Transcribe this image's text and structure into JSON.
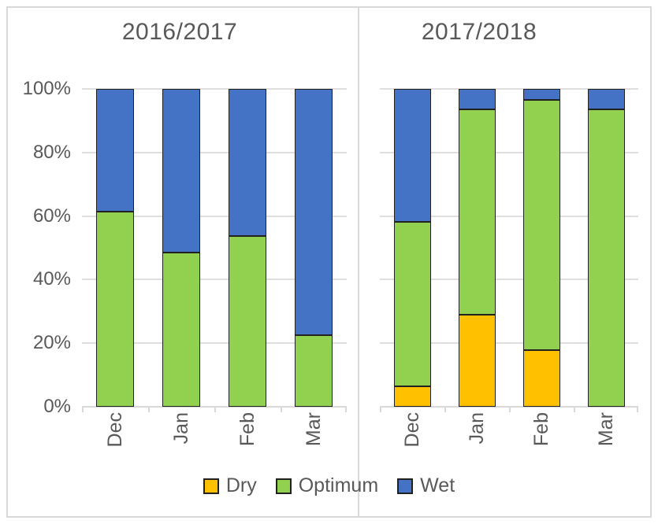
{
  "colors": {
    "dry": "#FFC000",
    "optimum": "#92D050",
    "wet": "#4472C4",
    "text": "#595959",
    "grid": "#D9D9D9",
    "bar_border": "#212121"
  },
  "legend": {
    "items": [
      {
        "key": "dry",
        "label": "Dry"
      },
      {
        "key": "optimum",
        "label": "Optimum"
      },
      {
        "key": "wet",
        "label": "Wet"
      }
    ],
    "position": "bottom-center"
  },
  "y_axis": {
    "tick_labels": [
      "100%",
      "80%",
      "60%",
      "40%",
      "20%",
      "0%"
    ],
    "shown_only_on_left_chart": true
  },
  "chart_data": [
    {
      "type": "bar",
      "subtype": "stacked-100-percent-column",
      "title": "2016/2017",
      "categories": [
        "Dec",
        "Jan",
        "Feb",
        "Mar"
      ],
      "series": [
        {
          "name": "Dry",
          "color_key": "dry",
          "values": [
            0,
            0,
            0,
            0
          ]
        },
        {
          "name": "Optimum",
          "color_key": "optimum",
          "values": [
            61.3,
            48.4,
            53.6,
            22.6
          ]
        },
        {
          "name": "Wet",
          "color_key": "wet",
          "values": [
            38.7,
            51.6,
            46.4,
            77.4
          ]
        }
      ],
      "stack_order_bottom_to_top": [
        "Dry",
        "Optimum",
        "Wet"
      ],
      "ylabel": "",
      "xlabel": "",
      "ylim": [
        0,
        100
      ],
      "grid": true,
      "x_tick_label_rotation_deg": 90
    },
    {
      "type": "bar",
      "subtype": "stacked-100-percent-column",
      "title": "2017/2018",
      "categories": [
        "Dec",
        "Jan",
        "Feb",
        "Mar"
      ],
      "series": [
        {
          "name": "Dry",
          "color_key": "dry",
          "values": [
            6.5,
            29.0,
            17.9,
            0
          ]
        },
        {
          "name": "Optimum",
          "color_key": "optimum",
          "values": [
            51.6,
            64.5,
            78.6,
            93.5
          ]
        },
        {
          "name": "Wet",
          "color_key": "wet",
          "values": [
            41.9,
            6.5,
            3.5,
            6.5
          ]
        }
      ],
      "stack_order_bottom_to_top": [
        "Dry",
        "Optimum",
        "Wet"
      ],
      "ylabel": "",
      "xlabel": "",
      "ylim": [
        0,
        100
      ],
      "grid": true,
      "x_tick_label_rotation_deg": 90
    }
  ]
}
